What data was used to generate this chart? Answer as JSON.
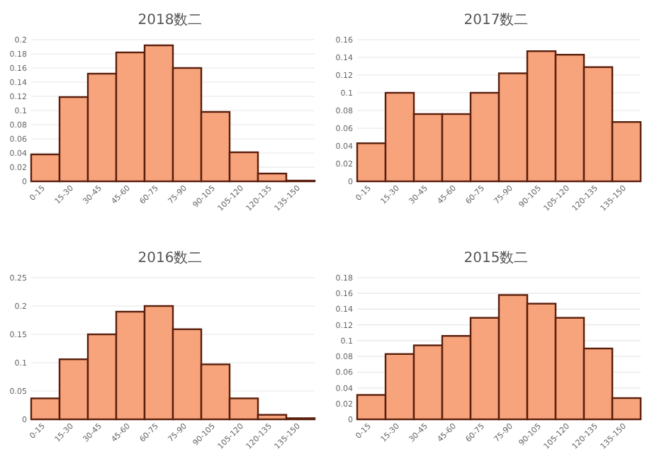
{
  "chart_data": [
    {
      "type": "bar",
      "title": "2018数二",
      "categories": [
        "0-15",
        "15-30",
        "30-45",
        "45-60",
        "60-75",
        "75-90",
        "90-105",
        "105-120",
        "120-135",
        "135-150"
      ],
      "values": [
        0.038,
        0.119,
        0.152,
        0.182,
        0.192,
        0.16,
        0.098,
        0.041,
        0.011,
        0.001
      ],
      "color": "#f7a47c",
      "ylim": [
        0,
        0.2
      ],
      "yticks": [
        0,
        0.02,
        0.04,
        0.06,
        0.08,
        0.1,
        0.12,
        0.14,
        0.16,
        0.18,
        0.2
      ],
      "grid": "y"
    },
    {
      "type": "bar",
      "title": "2017数二",
      "categories": [
        "0-15",
        "15-30",
        "30-45",
        "45-60",
        "60-75",
        "75-90",
        "90-105",
        "105-120",
        "120-135",
        "135-150"
      ],
      "values": [
        0.043,
        0.1,
        0.076,
        0.076,
        0.1,
        0.122,
        0.147,
        0.143,
        0.129,
        0.067
      ],
      "color": "#f7a47c",
      "ylim": [
        0,
        0.16
      ],
      "yticks": [
        0,
        0.02,
        0.04,
        0.06,
        0.08,
        0.1,
        0.12,
        0.14,
        0.16
      ],
      "grid": "y"
    },
    {
      "type": "bar",
      "title": "2016数二",
      "categories": [
        "0-15",
        "15-30",
        "30-45",
        "45-60",
        "60-75",
        "75-90",
        "90-105",
        "105-120",
        "120-135",
        "135-150"
      ],
      "values": [
        0.037,
        0.106,
        0.15,
        0.19,
        0.2,
        0.159,
        0.097,
        0.037,
        0.008,
        0.002
      ],
      "color": "#f7a47c",
      "ylim": [
        0,
        0.25
      ],
      "yticks": [
        0,
        0.05,
        0.1,
        0.15,
        0.2,
        0.25
      ],
      "grid": "y"
    },
    {
      "type": "bar",
      "title": "2015数二",
      "categories": [
        "0-15",
        "15-30",
        "30-45",
        "45-60",
        "60-75",
        "75-90",
        "90-105",
        "105-120",
        "120-135",
        "135-150"
      ],
      "values": [
        0.031,
        0.083,
        0.094,
        0.106,
        0.129,
        0.158,
        0.147,
        0.129,
        0.09,
        0.027
      ],
      "color": "#f7a47c",
      "ylim": [
        0,
        0.18
      ],
      "yticks": [
        0,
        0.02,
        0.04,
        0.06,
        0.08,
        0.1,
        0.12,
        0.14,
        0.16,
        0.18
      ],
      "grid": "y"
    }
  ]
}
